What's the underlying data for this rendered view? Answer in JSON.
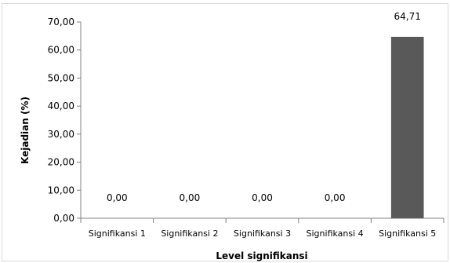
{
  "chart_data": {
    "type": "bar",
    "title": "",
    "xlabel": "Level signifikansi",
    "ylabel": "Kejadian (%)",
    "categories": [
      "Signifikansi 1",
      "Signifikansi 2",
      "Signifikansi 3",
      "Signifikansi 4",
      "Signifikansi 5"
    ],
    "values": [
      0.0,
      0.0,
      0.0,
      0.0,
      64.71
    ],
    "data_labels": [
      "0,00",
      "0,00",
      "0,00",
      "0,00",
      "64,71"
    ],
    "ylim": [
      0,
      70
    ],
    "yticks": [
      0,
      10,
      20,
      30,
      40,
      50,
      60,
      70
    ],
    "ytick_labels": [
      "0,00",
      "10,00",
      "20,00",
      "30,00",
      "40,00",
      "50,00",
      "60,00",
      "70,00"
    ],
    "grid": false,
    "legend": "none",
    "bar_color": "#595959"
  }
}
